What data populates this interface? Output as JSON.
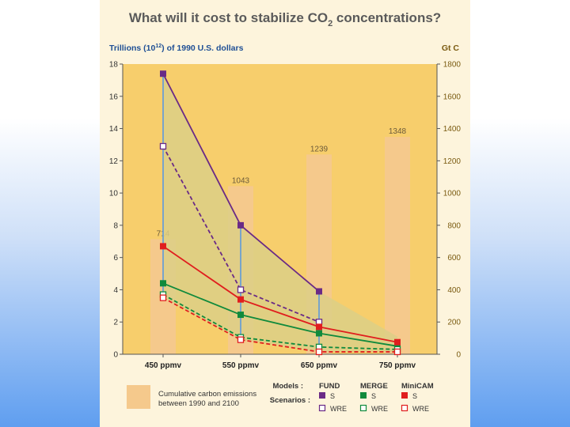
{
  "colors": {
    "panel": "#fdf4dc",
    "plot": "#f7ce6c",
    "bar": "#f5c98c",
    "band": "#dccf86",
    "fund": "#6a2a86",
    "merge": "#108a3c",
    "minicam": "#e01e1e",
    "connector": "#6d9fd2",
    "axisText": "#333333",
    "rightAxisText": "#7a5a10",
    "leftUnitText": "#1f4f95"
  },
  "chart_data": {
    "type": "line",
    "title": "What will it cost to stabilize CO2 concentrations?",
    "title_parts": {
      "main": "What will it cost to stabilize CO",
      "subscript": "2",
      "tail": " concentrations?"
    },
    "ylabel_left": "Trillions (10¹²) of 1990 U.S. dollars",
    "ylabel_left_parts": {
      "a": "Trillions (10",
      "sup": "12",
      "b": ") of 1990 U.S. dollars"
    },
    "ylabel_right": "Gt C",
    "categories": [
      "450 ppmv",
      "550 ppmv",
      "650 ppmv",
      "750 ppmv"
    ],
    "ylim_left": [
      0,
      18
    ],
    "yticks_left": [
      0,
      2,
      4,
      6,
      8,
      10,
      12,
      14,
      16,
      18
    ],
    "ylim_right": [
      0,
      1800
    ],
    "yticks_right": [
      0,
      200,
      400,
      600,
      800,
      1000,
      1200,
      1400,
      1600,
      1800
    ],
    "bars": {
      "name": "Cumulative carbon emissions between 1990 and 2100",
      "axis": "right",
      "values": [
        714,
        1043,
        1239,
        1348
      ],
      "labels": [
        "714",
        "1043",
        "1239",
        "1348"
      ]
    },
    "series": [
      {
        "model": "FUND",
        "scenario": "S",
        "style": "solid",
        "color": "#6a2a86",
        "values": [
          17.4,
          8.0,
          3.9,
          null
        ]
      },
      {
        "model": "FUND",
        "scenario": "WRE",
        "style": "dashed",
        "color": "#6a2a86",
        "values": [
          12.9,
          4.0,
          2.0,
          null
        ]
      },
      {
        "model": "MERGE",
        "scenario": "S",
        "style": "solid",
        "color": "#108a3c",
        "values": [
          4.4,
          2.45,
          1.3,
          0.5
        ]
      },
      {
        "model": "MERGE",
        "scenario": "WRE",
        "style": "dashed",
        "color": "#108a3c",
        "values": [
          3.7,
          1.05,
          0.45,
          0.3
        ]
      },
      {
        "model": "MiniCAM",
        "scenario": "S",
        "style": "solid",
        "color": "#e01e1e",
        "values": [
          6.7,
          3.4,
          1.7,
          0.75
        ]
      },
      {
        "model": "MiniCAM",
        "scenario": "WRE",
        "style": "dashed",
        "color": "#e01e1e",
        "values": [
          3.5,
          0.9,
          0.15,
          0.15
        ]
      }
    ],
    "band_upper": [
      17.4,
      8.0,
      3.9,
      1.1
    ],
    "band_lower": [
      3.5,
      0.9,
      0.15,
      0.15
    ],
    "legend": {
      "models_label": "Models :",
      "scenarios_label": "Scenarios :",
      "models": [
        "FUND",
        "MERGE",
        "MiniCAM"
      ],
      "scenarios": [
        "S",
        "WRE"
      ],
      "bar_label_line1": "Cumulative carbon emissions",
      "bar_label_line2": "between 1990 and 2100"
    }
  }
}
